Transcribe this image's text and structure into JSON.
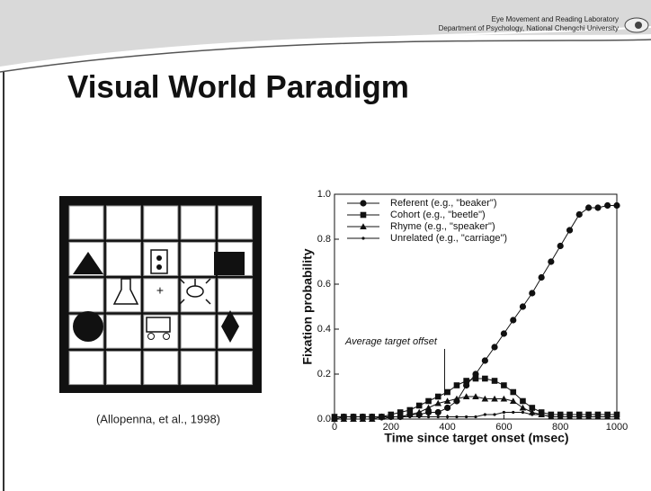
{
  "header": {
    "lab": "Eye Movement and Reading Laboratory",
    "department": "Department of Psychology, National Chengchi University"
  },
  "title": "Visual World Paradigm",
  "caption": "(Allopenna, et al., 1998)",
  "chart_data": {
    "type": "line",
    "x_label": "Time since target onset (msec)",
    "y_label": "Fixation probability",
    "annotation": {
      "text": "Average target offset",
      "x": 390
    },
    "x": [
      0,
      33,
      67,
      100,
      133,
      167,
      200,
      233,
      267,
      300,
      333,
      367,
      400,
      433,
      467,
      500,
      533,
      567,
      600,
      633,
      667,
      700,
      733,
      767,
      800,
      833,
      867,
      900,
      933,
      967,
      1000
    ],
    "series": [
      {
        "name": "Referent (e.g., \"beaker\")",
        "color": "#111111",
        "marker": "circle",
        "values": [
          0.0,
          0.01,
          0.01,
          0.01,
          0.01,
          0.01,
          0.01,
          0.01,
          0.02,
          0.02,
          0.03,
          0.03,
          0.05,
          0.08,
          0.15,
          0.2,
          0.26,
          0.32,
          0.38,
          0.44,
          0.5,
          0.56,
          0.63,
          0.7,
          0.77,
          0.84,
          0.91,
          0.94,
          0.94,
          0.95,
          0.95
        ]
      },
      {
        "name": "Cohort (e.g., \"beetle\")",
        "color": "#111111",
        "marker": "square",
        "values": [
          0.01,
          0.01,
          0.01,
          0.01,
          0.01,
          0.01,
          0.02,
          0.03,
          0.04,
          0.06,
          0.08,
          0.1,
          0.12,
          0.15,
          0.17,
          0.18,
          0.18,
          0.17,
          0.15,
          0.12,
          0.08,
          0.05,
          0.03,
          0.02,
          0.02,
          0.02,
          0.02,
          0.02,
          0.02,
          0.02,
          0.02
        ]
      },
      {
        "name": "Rhyme (e.g., \"speaker\")",
        "color": "#111111",
        "marker": "triangle",
        "values": [
          0.0,
          0.0,
          0.0,
          0.0,
          0.0,
          0.01,
          0.01,
          0.01,
          0.02,
          0.03,
          0.05,
          0.07,
          0.08,
          0.09,
          0.1,
          0.1,
          0.09,
          0.09,
          0.09,
          0.08,
          0.05,
          0.03,
          0.02,
          0.01,
          0.01,
          0.01,
          0.01,
          0.01,
          0.01,
          0.01,
          0.01
        ]
      },
      {
        "name": "Unrelated (e.g., \"carriage\")",
        "color": "#111111",
        "marker": "dot",
        "values": [
          0.0,
          0.0,
          0.0,
          0.0,
          0.0,
          0.0,
          0.01,
          0.01,
          0.01,
          0.01,
          0.01,
          0.01,
          0.01,
          0.01,
          0.01,
          0.01,
          0.02,
          0.02,
          0.03,
          0.03,
          0.03,
          0.02,
          0.02,
          0.01,
          0.01,
          0.01,
          0.01,
          0.01,
          0.01,
          0.01,
          0.01
        ]
      }
    ],
    "xlim": [
      0,
      1000
    ],
    "xticks": [
      0,
      200,
      400,
      600,
      800,
      1000
    ],
    "ylim": [
      0,
      1
    ],
    "yticks": [
      {
        "value": 0,
        "label": "0.0"
      },
      0.2,
      0.4,
      0.6,
      0.8,
      {
        "value": 1,
        "label": "1.0"
      }
    ],
    "legend": "upper left"
  }
}
